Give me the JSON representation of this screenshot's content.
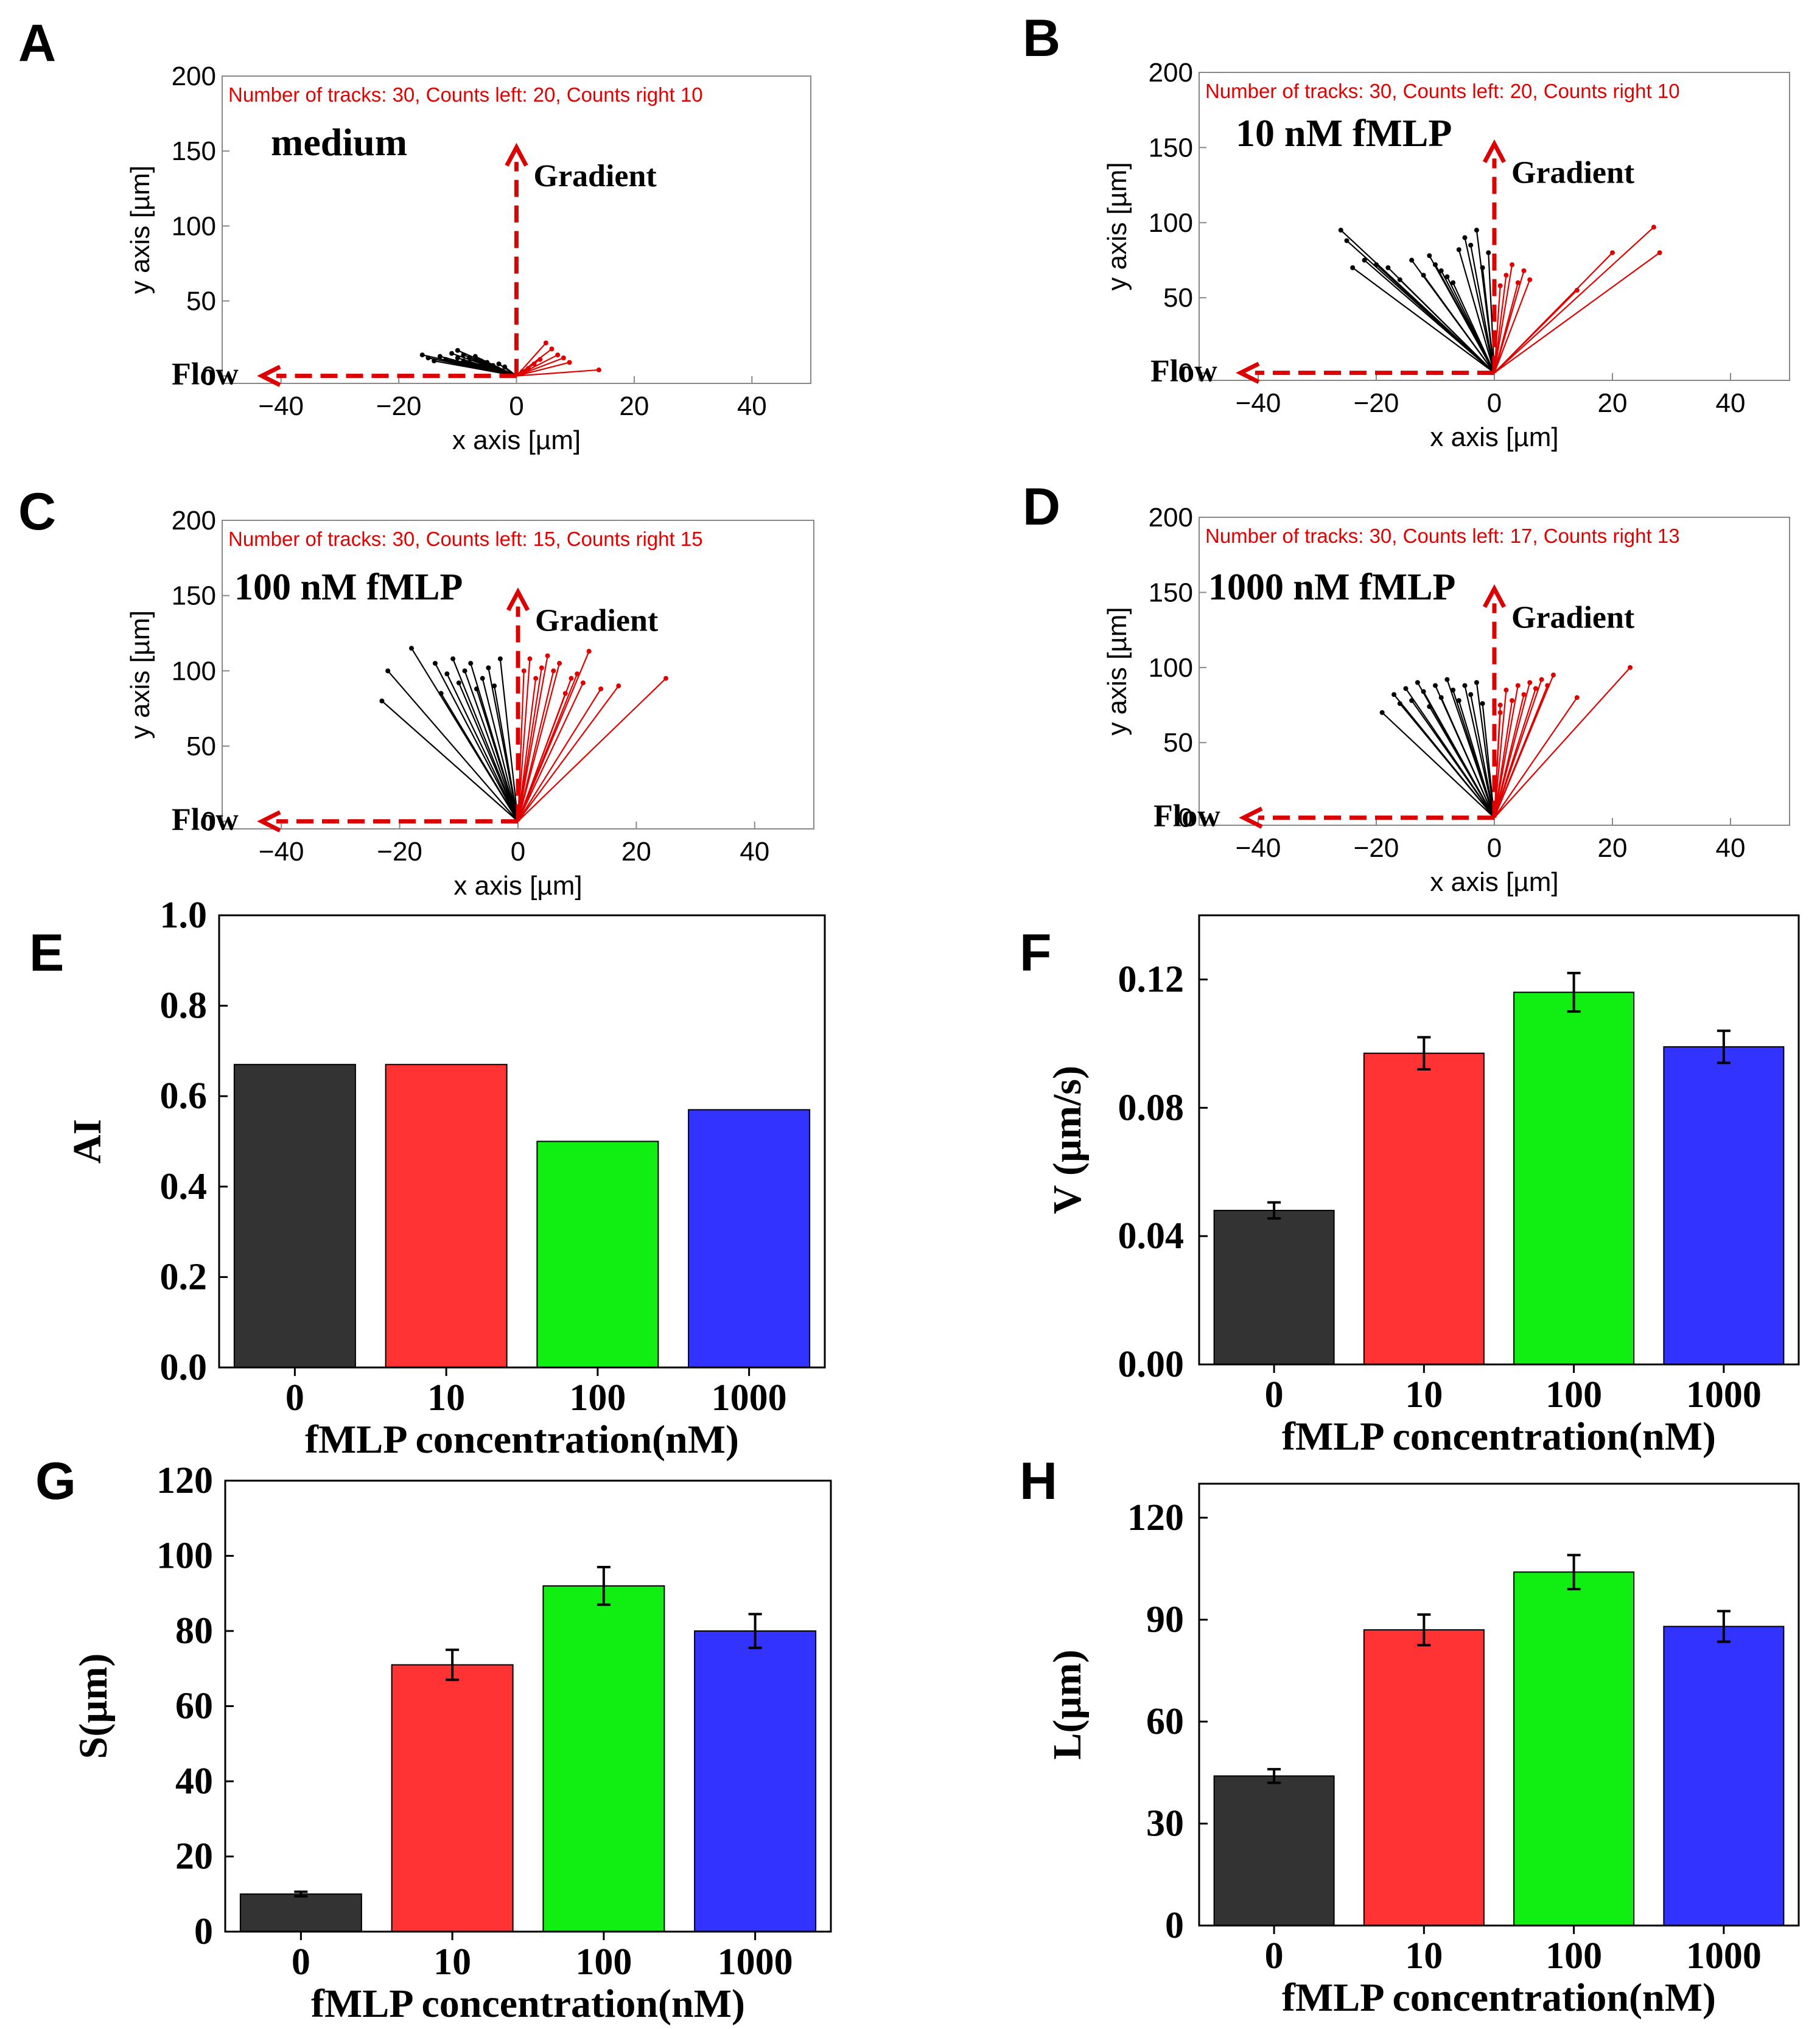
{
  "colors": {
    "track_left": "#000000",
    "track_right": "#e00000",
    "arrow": "#dd0000",
    "bar_0": "#333333",
    "bar_10": "#ff3333",
    "bar_100": "#11ee11",
    "bar_1000": "#3333ff"
  },
  "chart_data": [
    {
      "panel": "A",
      "type": "scatter",
      "condition": "medium",
      "info": "Number of tracks: 30, Counts left: 20, Counts right 10",
      "xlabel": "x axis [µm]",
      "ylabel": "y axis [µm]",
      "xlim": [
        -50,
        50
      ],
      "ylim": [
        -5,
        200
      ],
      "xticks": [
        -40,
        -20,
        0,
        20,
        40
      ],
      "yticks": [
        0,
        50,
        100,
        150,
        200
      ],
      "gradient_label": "Gradient",
      "flow_label": "Flow",
      "tracks_left": [
        [
          -16,
          14
        ],
        [
          -15,
          12
        ],
        [
          -14,
          10
        ],
        [
          -13,
          13
        ],
        [
          -12,
          11
        ],
        [
          -11,
          15
        ],
        [
          -10,
          12
        ],
        [
          -10,
          17
        ],
        [
          -9,
          10
        ],
        [
          -9,
          14
        ],
        [
          -8,
          12
        ],
        [
          -8,
          9
        ],
        [
          -7,
          11
        ],
        [
          -7,
          13
        ],
        [
          -6,
          8
        ],
        [
          -6,
          10
        ],
        [
          -5,
          9
        ],
        [
          -4,
          7
        ],
        [
          -3,
          8
        ],
        [
          -2,
          6
        ]
      ],
      "tracks_right": [
        [
          14,
          4
        ],
        [
          9,
          9
        ],
        [
          8,
          12
        ],
        [
          7,
          14
        ],
        [
          6,
          18
        ],
        [
          5,
          22
        ],
        [
          4,
          11
        ],
        [
          3,
          8
        ],
        [
          2,
          5
        ],
        [
          1,
          3
        ]
      ]
    },
    {
      "panel": "B",
      "type": "scatter",
      "condition": "10 nM fMLP",
      "info": "Number of tracks: 30, Counts left: 20, Counts right 10",
      "xlabel": "x axis [µm]",
      "ylabel": "y axis [µm]",
      "xlim": [
        -50,
        50
      ],
      "ylim": [
        -5,
        200
      ],
      "xticks": [
        -40,
        -20,
        0,
        20,
        40
      ],
      "yticks": [
        0,
        50,
        100,
        150,
        200
      ],
      "gradient_label": "Gradient",
      "flow_label": "Flow",
      "tracks_left": [
        [
          -26,
          95
        ],
        [
          -25,
          88
        ],
        [
          -24,
          70
        ],
        [
          -22,
          75
        ],
        [
          -20,
          72
        ],
        [
          -18,
          70
        ],
        [
          -16,
          62
        ],
        [
          -14,
          75
        ],
        [
          -12,
          65
        ],
        [
          -11,
          78
        ],
        [
          -10,
          72
        ],
        [
          -9,
          68
        ],
        [
          -8,
          64
        ],
        [
          -7,
          60
        ],
        [
          -6,
          82
        ],
        [
          -5,
          90
        ],
        [
          -4,
          85
        ],
        [
          -3,
          95
        ],
        [
          -2,
          70
        ],
        [
          -1,
          80
        ]
      ],
      "tracks_right": [
        [
          27,
          97
        ],
        [
          28,
          80
        ],
        [
          20,
          80
        ],
        [
          14,
          55
        ],
        [
          6,
          62
        ],
        [
          5,
          68
        ],
        [
          4,
          60
        ],
        [
          3,
          72
        ],
        [
          2,
          65
        ],
        [
          1,
          58
        ]
      ]
    },
    {
      "panel": "C",
      "type": "scatter",
      "condition": "100 nM fMLP",
      "info": "Number of tracks: 30, Counts left: 15, Counts right 15",
      "xlabel": "x axis [µm]",
      "ylabel": "y axis [µm]",
      "xlim": [
        -50,
        50
      ],
      "ylim": [
        -5,
        200
      ],
      "xticks": [
        -40,
        -20,
        0,
        20,
        40
      ],
      "yticks": [
        0,
        50,
        100,
        150,
        200
      ],
      "gradient_label": "Gradient",
      "flow_label": "Flow",
      "tracks_left": [
        [
          -23,
          80
        ],
        [
          -22,
          100
        ],
        [
          -18,
          115
        ],
        [
          -14,
          105
        ],
        [
          -13,
          85
        ],
        [
          -12,
          98
        ],
        [
          -11,
          108
        ],
        [
          -10,
          92
        ],
        [
          -9,
          100
        ],
        [
          -8,
          105
        ],
        [
          -7,
          88
        ],
        [
          -6,
          95
        ],
        [
          -5,
          102
        ],
        [
          -4,
          90
        ],
        [
          -3,
          108
        ]
      ],
      "tracks_right": [
        [
          25,
          95
        ],
        [
          17,
          90
        ],
        [
          14,
          88
        ],
        [
          12,
          113
        ],
        [
          11,
          92
        ],
        [
          10,
          98
        ],
        [
          9,
          95
        ],
        [
          8,
          85
        ],
        [
          7,
          105
        ],
        [
          6,
          100
        ],
        [
          5,
          110
        ],
        [
          4,
          102
        ],
        [
          3,
          95
        ],
        [
          2,
          108
        ],
        [
          1,
          100
        ]
      ]
    },
    {
      "panel": "D",
      "type": "scatter",
      "condition": "1000 nM fMLP",
      "info": "Number of tracks: 30, Counts left: 17, Counts right 13",
      "xlabel": "x axis [µm]",
      "ylabel": "y axis [µm]",
      "xlim": [
        -50,
        50
      ],
      "ylim": [
        -5,
        200
      ],
      "xticks": [
        -40,
        -20,
        0,
        20,
        40
      ],
      "yticks": [
        0,
        50,
        100,
        150,
        200
      ],
      "gradient_label": "Gradient",
      "flow_label": "Flow",
      "tracks_left": [
        [
          -19,
          70
        ],
        [
          -17,
          82
        ],
        [
          -16,
          76
        ],
        [
          -15,
          86
        ],
        [
          -14,
          78
        ],
        [
          -13,
          90
        ],
        [
          -12,
          84
        ],
        [
          -11,
          74
        ],
        [
          -10,
          88
        ],
        [
          -9,
          80
        ],
        [
          -8,
          92
        ],
        [
          -7,
          85
        ],
        [
          -6,
          78
        ],
        [
          -5,
          88
        ],
        [
          -4,
          82
        ],
        [
          -3,
          90
        ],
        [
          -2,
          76
        ]
      ],
      "tracks_right": [
        [
          23,
          100
        ],
        [
          14,
          80
        ],
        [
          10,
          95
        ],
        [
          9,
          88
        ],
        [
          8,
          92
        ],
        [
          7,
          86
        ],
        [
          6,
          90
        ],
        [
          5,
          82
        ],
        [
          4,
          88
        ],
        [
          3,
          78
        ],
        [
          2,
          85
        ],
        [
          1,
          75
        ],
        [
          1,
          70
        ]
      ]
    },
    {
      "panel": "E",
      "type": "bar",
      "categories": [
        "0",
        "10",
        "100",
        "1000"
      ],
      "values": [
        0.67,
        0.67,
        0.5,
        0.57
      ],
      "xlabel": "fMLP concentration(nM)",
      "ylabel": "AI",
      "ylim": [
        0,
        1.0
      ],
      "ytick_labels": [
        "0.0",
        "0.2",
        "0.4",
        "0.6",
        "0.8",
        "1.0"
      ]
    },
    {
      "panel": "F",
      "type": "bar",
      "categories": [
        "0",
        "10",
        "100",
        "1000"
      ],
      "values": [
        0.048,
        0.097,
        0.116,
        0.099
      ],
      "errors": [
        0.0025,
        0.005,
        0.006,
        0.005
      ],
      "xlabel": "fMLP concentration(nM)",
      "ylabel": "V (µm/s)",
      "ylim": [
        0,
        0.14
      ],
      "ytick_labels": [
        "0.00",
        "0.04",
        "0.08",
        "0.12"
      ]
    },
    {
      "panel": "G",
      "type": "bar",
      "categories": [
        "0",
        "10",
        "100",
        "1000"
      ],
      "values": [
        10,
        71,
        92,
        80
      ],
      "errors": [
        0.6,
        4,
        5,
        4.5
      ],
      "xlabel": "fMLP concentration(nM)",
      "ylabel": "S(µm)",
      "ylim": [
        0,
        120
      ],
      "ytick_labels": [
        "0",
        "20",
        "40",
        "60",
        "80",
        "100",
        "120"
      ]
    },
    {
      "panel": "H",
      "type": "bar",
      "categories": [
        "0",
        "10",
        "100",
        "1000"
      ],
      "values": [
        44,
        87,
        104,
        88
      ],
      "errors": [
        2,
        4.5,
        5,
        4.5
      ],
      "xlabel": "fMLP concentration(nM)",
      "ylabel": "L(µm)",
      "ylim": [
        0,
        130
      ],
      "ytick_labels": [
        "0",
        "30",
        "60",
        "90",
        "120"
      ]
    }
  ]
}
